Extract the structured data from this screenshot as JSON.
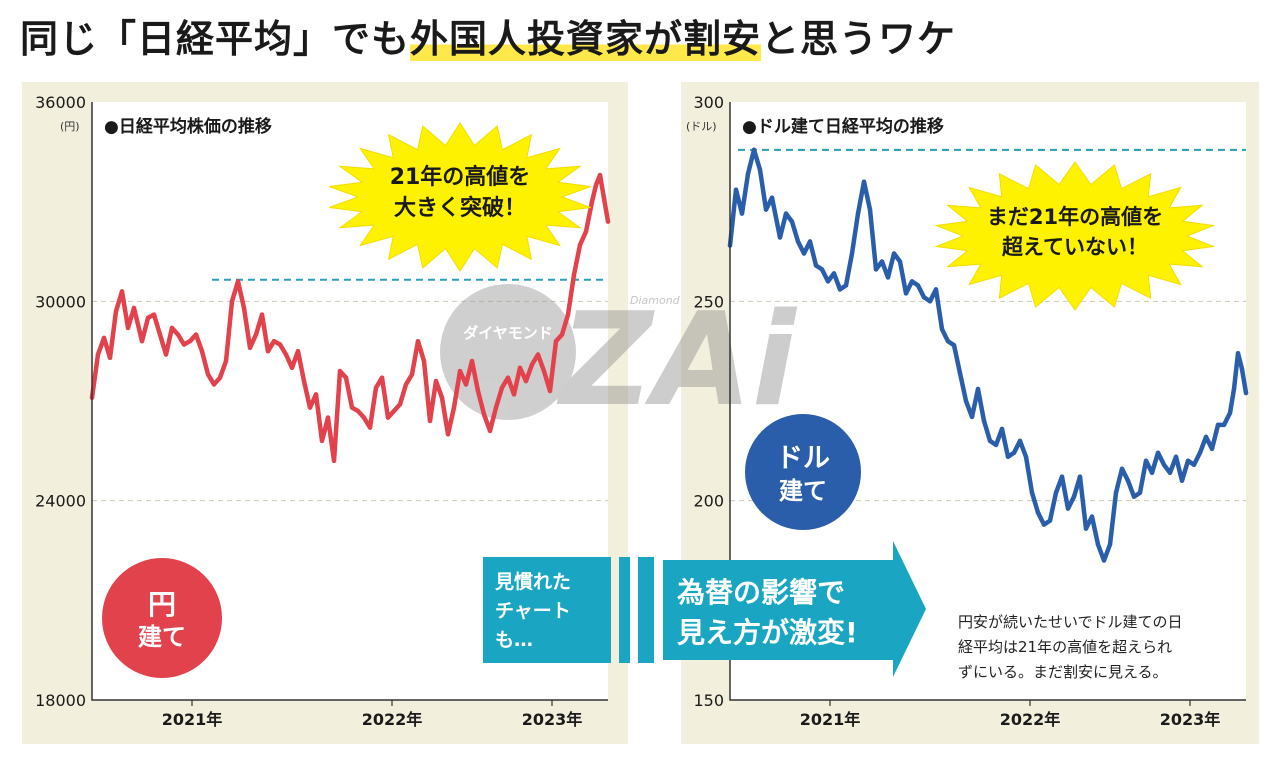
{
  "headline": {
    "plain": "同じ「日経平均」でも",
    "highlight": "外国人投資家が割安",
    "tail": "と思うワケ"
  },
  "watermark": {
    "logo": "ZAi",
    "sub": "ダイヤモンド",
    "tiny": "Diamond"
  },
  "charts": [
    {
      "title": "●日経平均株価の推移",
      "unit": "(円)",
      "badge_line1": "円",
      "badge_line2": "建て",
      "burst_line1": "21年の高値を",
      "burst_line2": "大きく突破！",
      "ref_value": 30650
    },
    {
      "title": "●ドル建て日経平均の推移",
      "unit": "(ドル)",
      "badge_line1": "ドル",
      "badge_line2": "建て",
      "burst_line1": "まだ21年の高値を",
      "burst_line2": "超えていない！",
      "ref_value": 288
    }
  ],
  "arrow": {
    "left_line1": "見慣れた",
    "left_line2": "チャート",
    "left_line3": "も…",
    "right_line1": "為替の影響で",
    "right_line2": "見え方が激変!"
  },
  "note": {
    "line1": "円安が続いたせいでドル建ての日",
    "line2": "経平均は21年の高値を超えられ",
    "line3": "ずにいる。まだ割安に見える。"
  },
  "colors": {
    "red": "#e2424b",
    "blue": "#2a5eab",
    "teal": "#1aa6c2",
    "frame": "#f2efdc",
    "yellow": "#fff200"
  },
  "chart_data": [
    {
      "type": "line",
      "title": "日経平均株価の推移",
      "ylabel": "(円)",
      "ylim": [
        18000,
        36000
      ],
      "yticks": [
        18000,
        24000,
        30000,
        36000
      ],
      "ytick_labels": [
        "18000",
        "24000",
        "30000",
        "36000"
      ],
      "xlim": [
        2021.0,
        2023.58
      ],
      "xticks": [
        2021.5,
        2022.5,
        2023.3
      ],
      "xtick_labels": [
        "2021年",
        "2022年",
        "2023年"
      ],
      "grid": "horizontal dashed",
      "series": [
        {
          "name": "日経平均株価（円建て）",
          "color": "#e2424b",
          "x": [
            2021.0,
            2021.03,
            2021.06,
            2021.09,
            2021.12,
            2021.15,
            2021.18,
            2021.21,
            2021.25,
            2021.28,
            2021.31,
            2021.34,
            2021.37,
            2021.4,
            2021.43,
            2021.46,
            2021.49,
            2021.52,
            2021.55,
            2021.58,
            2021.61,
            2021.64,
            2021.67,
            2021.7,
            2021.73,
            2021.76,
            2021.79,
            2021.82,
            2021.85,
            2021.88,
            2021.91,
            2021.94,
            2021.97,
            2022.0,
            2022.03,
            2022.06,
            2022.09,
            2022.12,
            2022.15,
            2022.18,
            2022.21,
            2022.24,
            2022.27,
            2022.3,
            2022.33,
            2022.36,
            2022.39,
            2022.42,
            2022.45,
            2022.48,
            2022.51,
            2022.54,
            2022.57,
            2022.6,
            2022.63,
            2022.66,
            2022.69,
            2022.72,
            2022.75,
            2022.78,
            2022.81,
            2022.84,
            2022.87,
            2022.9,
            2022.93,
            2022.96,
            2022.99,
            2023.02,
            2023.05,
            2023.08,
            2023.11,
            2023.14,
            2023.17,
            2023.2,
            2023.23,
            2023.26,
            2023.29,
            2023.32,
            2023.35,
            2023.38,
            2023.41,
            2023.44,
            2023.47,
            2023.5,
            2023.52,
            2023.54,
            2023.56,
            2023.58
          ],
          "values": [
            27100,
            28400,
            28900,
            28300,
            29700,
            30300,
            29200,
            29800,
            28800,
            29500,
            29600,
            29000,
            28400,
            29200,
            29000,
            28700,
            28800,
            29000,
            28500,
            27800,
            27500,
            27700,
            28200,
            30000,
            30600,
            29800,
            28600,
            29000,
            29600,
            28500,
            28800,
            28700,
            28400,
            28000,
            28500,
            27600,
            26800,
            27200,
            25800,
            26500,
            25200,
            27900,
            27700,
            26800,
            26700,
            26500,
            26200,
            27400,
            27700,
            26500,
            26700,
            26900,
            27500,
            27800,
            28800,
            28200,
            26400,
            27600,
            27100,
            26000,
            26800,
            27900,
            27500,
            28200,
            27300,
            26600,
            26100,
            26800,
            27400,
            27700,
            27200,
            28000,
            27600,
            28100,
            28400,
            27900,
            27300,
            28800,
            29000,
            29600,
            30800,
            31700,
            32100,
            33000,
            33500,
            33800,
            33100,
            32400
          ]
        }
      ],
      "reference_line": {
        "value": 30650,
        "label": "21年の高値"
      }
    },
    {
      "type": "line",
      "title": "ドル建て日経平均の推移",
      "ylabel": "(ドル)",
      "ylim": [
        150,
        300
      ],
      "yticks": [
        150,
        200,
        250,
        300
      ],
      "ytick_labels": [
        "150",
        "200",
        "250",
        "300"
      ],
      "xlim": [
        2021.0,
        2023.58
      ],
      "xticks": [
        2021.5,
        2022.5,
        2023.3
      ],
      "xtick_labels": [
        "2021年",
        "2022年",
        "2023年"
      ],
      "grid": "horizontal dashed",
      "series": [
        {
          "name": "ドル建て日経平均",
          "color": "#2a5eab",
          "x": [
            2021.0,
            2021.03,
            2021.06,
            2021.09,
            2021.12,
            2021.15,
            2021.18,
            2021.21,
            2021.25,
            2021.28,
            2021.31,
            2021.34,
            2021.37,
            2021.4,
            2021.43,
            2021.46,
            2021.49,
            2021.52,
            2021.55,
            2021.58,
            2021.61,
            2021.64,
            2021.67,
            2021.7,
            2021.73,
            2021.76,
            2021.79,
            2021.82,
            2021.85,
            2021.88,
            2021.91,
            2021.94,
            2021.97,
            2022.0,
            2022.03,
            2022.06,
            2022.09,
            2022.12,
            2022.15,
            2022.18,
            2022.21,
            2022.24,
            2022.27,
            2022.3,
            2022.33,
            2022.36,
            2022.39,
            2022.42,
            2022.45,
            2022.48,
            2022.51,
            2022.54,
            2022.57,
            2022.6,
            2022.63,
            2022.66,
            2022.69,
            2022.72,
            2022.75,
            2022.78,
            2022.81,
            2022.84,
            2022.87,
            2022.9,
            2022.93,
            2022.96,
            2022.99,
            2023.02,
            2023.05,
            2023.08,
            2023.11,
            2023.14,
            2023.17,
            2023.2,
            2023.23,
            2023.26,
            2023.29,
            2023.32,
            2023.35,
            2023.38,
            2023.41,
            2023.44,
            2023.47,
            2023.5,
            2023.52,
            2023.54,
            2023.56,
            2023.58
          ],
          "values": [
            264,
            278,
            272,
            282,
            288,
            283,
            273,
            276,
            266,
            272,
            270,
            265,
            262,
            265,
            259,
            258,
            255,
            257,
            253,
            254,
            262,
            272,
            280,
            273,
            258,
            260,
            256,
            262,
            260,
            252,
            255,
            254,
            251,
            250,
            253,
            243,
            240,
            239,
            232,
            225,
            221,
            228,
            220,
            215,
            214,
            218,
            211,
            212,
            215,
            211,
            202,
            197,
            194,
            195,
            202,
            206,
            198,
            201,
            206,
            193,
            196,
            189,
            185,
            189,
            202,
            208,
            205,
            201,
            202,
            210,
            207,
            212,
            209,
            207,
            211,
            205,
            210,
            209,
            212,
            216,
            213,
            219,
            219,
            222,
            228,
            237,
            233,
            227
          ]
        }
      ],
      "reference_line": {
        "value": 288,
        "label": "21年の高値"
      }
    }
  ]
}
